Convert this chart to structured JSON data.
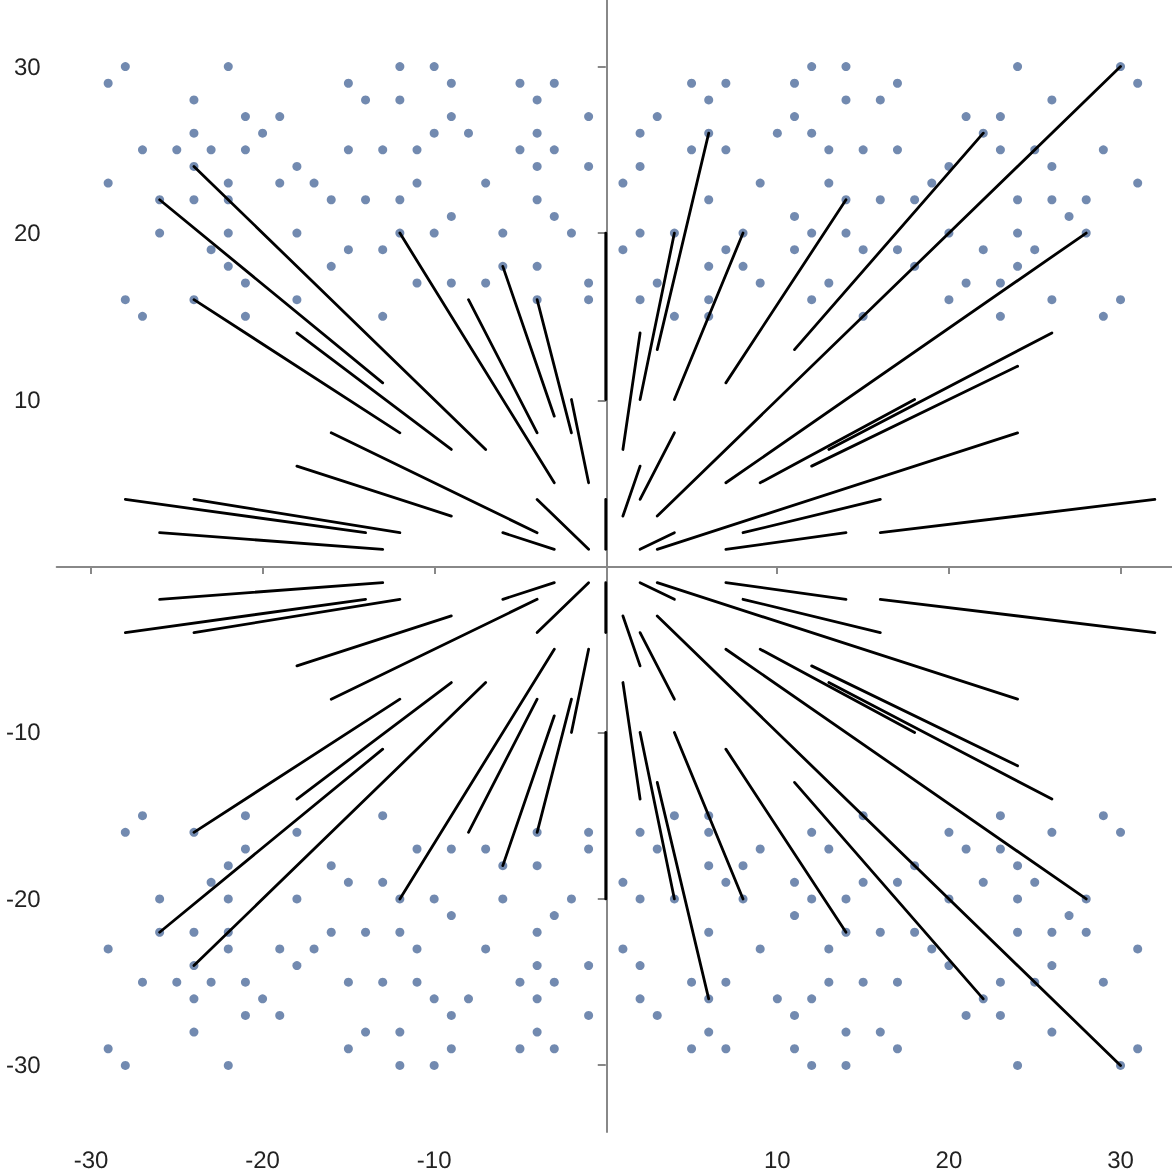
{
  "chart_data": {
    "type": "scatter",
    "xlim": [
      -32,
      33
    ],
    "ylim": [
      -34,
      34
    ],
    "xticks": [
      -30,
      -20,
      -10,
      10,
      20,
      30
    ],
    "yticks": [
      -30,
      -20,
      -10,
      10,
      20,
      30
    ],
    "marker": "circle",
    "series": [
      {
        "color": "#4f6d9c",
        "x": [
          12,
          14,
          24,
          30,
          5,
          7,
          11,
          17,
          31,
          6,
          14,
          16,
          26,
          3,
          11,
          21,
          23,
          2,
          6,
          10,
          12,
          22,
          5,
          7,
          13,
          15,
          17,
          23,
          25,
          29,
          2,
          20,
          26,
          1,
          9,
          13,
          19,
          31,
          6,
          14,
          16,
          18,
          24,
          26,
          28,
          11,
          27,
          2,
          4,
          8,
          12,
          14,
          20,
          24,
          28,
          1,
          7,
          11,
          15,
          17,
          22,
          25,
          6,
          8,
          18,
          24,
          3,
          9,
          13,
          21,
          23,
          2,
          6,
          12,
          20,
          26,
          30,
          4,
          6,
          15,
          23,
          29,
          -28,
          -22,
          -12,
          -10,
          -29,
          -15,
          -9,
          -5,
          -3,
          -24,
          -14,
          -12,
          -4,
          -21,
          -19,
          -9,
          -1,
          -24,
          -20,
          -10,
          -8,
          -4,
          -27,
          -25,
          -23,
          -21,
          -15,
          -13,
          -11,
          -5,
          -3,
          -24,
          -18,
          -4,
          -1,
          -29,
          -22,
          -19,
          -17,
          -11,
          -7,
          -26,
          -24,
          -22,
          -16,
          -14,
          -12,
          -4,
          -9,
          -3,
          -26,
          -22,
          -18,
          -12,
          -10,
          -6,
          -2,
          -23,
          -15,
          -13,
          -22,
          -16,
          -6,
          -4,
          -21,
          -11,
          -9,
          -7,
          -1,
          -28,
          -24,
          -18,
          -4,
          -1,
          -27,
          -21,
          -13,
          12,
          14,
          24,
          30,
          5,
          7,
          11,
          17,
          31,
          6,
          14,
          16,
          26,
          3,
          11,
          21,
          23,
          2,
          6,
          10,
          12,
          22,
          5,
          7,
          13,
          15,
          17,
          23,
          25,
          29,
          2,
          20,
          26,
          1,
          9,
          13,
          19,
          31,
          6,
          14,
          16,
          18,
          24,
          26,
          28,
          11,
          27,
          2,
          4,
          8,
          12,
          14,
          20,
          24,
          28,
          1,
          7,
          11,
          15,
          17,
          22,
          25,
          6,
          8,
          18,
          24,
          3,
          9,
          13,
          21,
          23,
          2,
          6,
          12,
          20,
          26,
          30,
          4,
          6,
          15,
          23,
          29,
          -28,
          -22,
          -12,
          -10,
          -29,
          -15,
          -9,
          -5,
          -3,
          -24,
          -14,
          -12,
          -4,
          -21,
          -19,
          -9,
          -1,
          -24,
          -20,
          -10,
          -8,
          -4,
          -27,
          -25,
          -23,
          -21,
          -15,
          -13,
          -11,
          -5,
          -3,
          -24,
          -18,
          -4,
          -1,
          -29,
          -22,
          -19,
          -17,
          -11,
          -7,
          -26,
          -24,
          -22,
          -16,
          -14,
          -12,
          -4,
          -9,
          -3,
          -26,
          -22,
          -18,
          -12,
          -10,
          -6,
          -2,
          -23,
          -15,
          -13,
          -22,
          -16,
          -6,
          -4,
          -21,
          -11,
          -9,
          -7,
          -1,
          -28,
          -24,
          -18,
          -4,
          -1,
          -27,
          -21,
          -13
        ],
        "values": [
          30,
          30,
          30,
          30,
          29,
          29,
          29,
          29,
          29,
          28,
          28,
          28,
          28,
          27,
          27,
          27,
          27,
          26,
          26,
          26,
          26,
          26,
          25,
          25,
          25,
          25,
          25,
          25,
          25,
          25,
          24,
          24,
          24,
          23,
          23,
          23,
          23,
          23,
          22,
          22,
          22,
          22,
          22,
          22,
          22,
          21,
          21,
          20,
          20,
          20,
          20,
          20,
          20,
          20,
          20,
          19,
          19,
          19,
          19,
          19,
          19,
          19,
          18,
          18,
          18,
          18,
          17,
          17,
          17,
          17,
          17,
          16,
          16,
          16,
          16,
          16,
          16,
          15,
          15,
          15,
          15,
          15,
          30,
          30,
          30,
          30,
          29,
          29,
          29,
          29,
          29,
          28,
          28,
          28,
          28,
          27,
          27,
          27,
          27,
          26,
          26,
          26,
          26,
          26,
          25,
          25,
          25,
          25,
          25,
          25,
          25,
          25,
          25,
          24,
          24,
          24,
          24,
          23,
          23,
          23,
          23,
          23,
          23,
          22,
          22,
          22,
          22,
          22,
          22,
          22,
          21,
          21,
          20,
          20,
          20,
          20,
          20,
          20,
          20,
          19,
          19,
          19,
          18,
          18,
          18,
          18,
          17,
          17,
          17,
          17,
          17,
          16,
          16,
          16,
          16,
          16,
          15,
          15,
          15,
          -30,
          -30,
          -30,
          -30,
          -29,
          -29,
          -29,
          -29,
          -29,
          -28,
          -28,
          -28,
          -28,
          -27,
          -27,
          -27,
          -27,
          -26,
          -26,
          -26,
          -26,
          -26,
          -25,
          -25,
          -25,
          -25,
          -25,
          -25,
          -25,
          -25,
          -24,
          -24,
          -24,
          -23,
          -23,
          -23,
          -23,
          -23,
          -22,
          -22,
          -22,
          -22,
          -22,
          -22,
          -22,
          -21,
          -21,
          -20,
          -20,
          -20,
          -20,
          -20,
          -20,
          -20,
          -20,
          -19,
          -19,
          -19,
          -19,
          -19,
          -19,
          -19,
          -18,
          -18,
          -18,
          -18,
          -17,
          -17,
          -17,
          -17,
          -17,
          -16,
          -16,
          -16,
          -16,
          -16,
          -16,
          -15,
          -15,
          -15,
          -15,
          -15,
          -30,
          -30,
          -30,
          -30,
          -29,
          -29,
          -29,
          -29,
          -29,
          -28,
          -28,
          -28,
          -28,
          -27,
          -27,
          -27,
          -27,
          -26,
          -26,
          -26,
          -26,
          -26,
          -25,
          -25,
          -25,
          -25,
          -25,
          -25,
          -25,
          -25,
          -25,
          -24,
          -24,
          -24,
          -24,
          -23,
          -23,
          -23,
          -23,
          -23,
          -23,
          -22,
          -22,
          -22,
          -22,
          -22,
          -22,
          -22,
          -21,
          -21,
          -20,
          -20,
          -20,
          -20,
          -20,
          -20,
          -20,
          -19,
          -19,
          -19,
          -18,
          -18,
          -18,
          -18,
          -17,
          -17,
          -17,
          -17,
          -17,
          -16,
          -16,
          -16,
          -16,
          -16,
          -15,
          -15,
          -15
        ]
      },
      {
        "type": "line",
        "color": "#000000",
        "marker": "none",
        "line_style": "solid",
        "x": [
          30,
          3
        ],
        "values": [
          30,
          3
        ]
      },
      {
        "type": "line",
        "color": "#000000",
        "marker": "none",
        "line_style": "solid",
        "x": [
          22,
          11
        ],
        "values": [
          26,
          13
        ]
      },
      {
        "type": "line",
        "color": "#000000",
        "marker": "none",
        "line_style": "solid",
        "x": [
          14,
          7
        ],
        "values": [
          22,
          11
        ]
      },
      {
        "type": "line",
        "color": "#000000",
        "marker": "none",
        "line_style": "solid",
        "x": [
          6,
          3
        ],
        "values": [
          26,
          13
        ]
      },
      {
        "type": "line",
        "color": "#000000",
        "marker": "none",
        "line_style": "solid",
        "x": [
          4,
          2
        ],
        "values": [
          20,
          10
        ]
      },
      {
        "type": "line",
        "color": "#000000",
        "marker": "none",
        "line_style": "solid",
        "x": [
          8,
          4
        ],
        "values": [
          20,
          10
        ]
      },
      {
        "type": "line",
        "color": "#000000",
        "marker": "none",
        "line_style": "solid",
        "x": [
          2,
          1
        ],
        "values": [
          14,
          7
        ]
      },
      {
        "type": "line",
        "color": "#000000",
        "marker": "none",
        "line_style": "solid",
        "x": [
          4,
          2
        ],
        "values": [
          8,
          4
        ]
      },
      {
        "type": "line",
        "color": "#000000",
        "marker": "none",
        "line_style": "solid",
        "x": [
          2,
          1
        ],
        "values": [
          6,
          3
        ]
      },
      {
        "type": "line",
        "color": "#000000",
        "marker": "none",
        "line_style": "solid",
        "x": [
          28,
          7
        ],
        "values": [
          20,
          5
        ]
      },
      {
        "type": "line",
        "color": "#000000",
        "marker": "none",
        "line_style": "solid",
        "x": [
          26,
          13
        ],
        "values": [
          14,
          7
        ]
      },
      {
        "type": "line",
        "color": "#000000",
        "marker": "none",
        "line_style": "solid",
        "x": [
          18,
          9
        ],
        "values": [
          10,
          5
        ]
      },
      {
        "type": "line",
        "color": "#000000",
        "marker": "none",
        "line_style": "solid",
        "x": [
          24,
          12
        ],
        "values": [
          12,
          6
        ]
      },
      {
        "type": "line",
        "color": "#000000",
        "marker": "none",
        "line_style": "solid",
        "x": [
          24,
          3
        ],
        "values": [
          8,
          1
        ]
      },
      {
        "type": "line",
        "color": "#000000",
        "marker": "none",
        "line_style": "solid",
        "x": [
          16,
          8
        ],
        "values": [
          4,
          2
        ]
      },
      {
        "type": "line",
        "color": "#000000",
        "marker": "none",
        "line_style": "solid",
        "x": [
          14,
          7
        ],
        "values": [
          2,
          1
        ]
      },
      {
        "type": "line",
        "color": "#000000",
        "marker": "none",
        "line_style": "solid",
        "x": [
          32,
          16
        ],
        "values": [
          4,
          2
        ]
      },
      {
        "type": "line",
        "color": "#000000",
        "marker": "none",
        "line_style": "solid",
        "x": [
          4,
          2
        ],
        "values": [
          2,
          1
        ]
      },
      {
        "type": "line",
        "color": "#000000",
        "marker": "none",
        "line_style": "solid",
        "x": [
          30,
          3
        ],
        "values": [
          -30,
          -3
        ]
      },
      {
        "type": "line",
        "color": "#000000",
        "marker": "none",
        "line_style": "solid",
        "x": [
          22,
          11
        ],
        "values": [
          -26,
          -13
        ]
      },
      {
        "type": "line",
        "color": "#000000",
        "marker": "none",
        "line_style": "solid",
        "x": [
          14,
          7
        ],
        "values": [
          -22,
          -11
        ]
      },
      {
        "type": "line",
        "color": "#000000",
        "marker": "none",
        "line_style": "solid",
        "x": [
          6,
          3
        ],
        "values": [
          -26,
          -13
        ]
      },
      {
        "type": "line",
        "color": "#000000",
        "marker": "none",
        "line_style": "solid",
        "x": [
          4,
          2
        ],
        "values": [
          -20,
          -10
        ]
      },
      {
        "type": "line",
        "color": "#000000",
        "marker": "none",
        "line_style": "solid",
        "x": [
          8,
          4
        ],
        "values": [
          -20,
          -10
        ]
      },
      {
        "type": "line",
        "color": "#000000",
        "marker": "none",
        "line_style": "solid",
        "x": [
          2,
          1
        ],
        "values": [
          -14,
          -7
        ]
      },
      {
        "type": "line",
        "color": "#000000",
        "marker": "none",
        "line_style": "solid",
        "x": [
          4,
          2
        ],
        "values": [
          -8,
          -4
        ]
      },
      {
        "type": "line",
        "color": "#000000",
        "marker": "none",
        "line_style": "solid",
        "x": [
          2,
          1
        ],
        "values": [
          -6,
          -3
        ]
      },
      {
        "type": "line",
        "color": "#000000",
        "marker": "none",
        "line_style": "solid",
        "x": [
          28,
          7
        ],
        "values": [
          -20,
          -5
        ]
      },
      {
        "type": "line",
        "color": "#000000",
        "marker": "none",
        "line_style": "solid",
        "x": [
          26,
          13
        ],
        "values": [
          -14,
          -7
        ]
      },
      {
        "type": "line",
        "color": "#000000",
        "marker": "none",
        "line_style": "solid",
        "x": [
          18,
          9
        ],
        "values": [
          -10,
          -5
        ]
      },
      {
        "type": "line",
        "color": "#000000",
        "marker": "none",
        "line_style": "solid",
        "x": [
          24,
          12
        ],
        "values": [
          -12,
          -6
        ]
      },
      {
        "type": "line",
        "color": "#000000",
        "marker": "none",
        "line_style": "solid",
        "x": [
          24,
          3
        ],
        "values": [
          -8,
          -1
        ]
      },
      {
        "type": "line",
        "color": "#000000",
        "marker": "none",
        "line_style": "solid",
        "x": [
          16,
          8
        ],
        "values": [
          -4,
          -2
        ]
      },
      {
        "type": "line",
        "color": "#000000",
        "marker": "none",
        "line_style": "solid",
        "x": [
          14,
          7
        ],
        "values": [
          -2,
          -1
        ]
      },
      {
        "type": "line",
        "color": "#000000",
        "marker": "none",
        "line_style": "solid",
        "x": [
          32,
          16
        ],
        "values": [
          -4,
          -2
        ]
      },
      {
        "type": "line",
        "color": "#000000",
        "marker": "none",
        "line_style": "solid",
        "x": [
          4,
          2
        ],
        "values": [
          -2,
          -1
        ]
      },
      {
        "type": "line",
        "color": "#000000",
        "marker": "none",
        "line_style": "solid",
        "x": [
          -24,
          -7
        ],
        "values": [
          24,
          7
        ]
      },
      {
        "type": "line",
        "color": "#000000",
        "marker": "none",
        "line_style": "solid",
        "x": [
          -26,
          -13
        ],
        "values": [
          22,
          11
        ]
      },
      {
        "type": "line",
        "color": "#000000",
        "marker": "none",
        "line_style": "solid",
        "x": [
          -24,
          -12
        ],
        "values": [
          16,
          8
        ]
      },
      {
        "type": "line",
        "color": "#000000",
        "marker": "none",
        "line_style": "solid",
        "x": [
          -18,
          -9
        ],
        "values": [
          14,
          7
        ]
      },
      {
        "type": "line",
        "color": "#000000",
        "marker": "none",
        "line_style": "solid",
        "x": [
          -12,
          -3
        ],
        "values": [
          20,
          5
        ]
      },
      {
        "type": "line",
        "color": "#000000",
        "marker": "none",
        "line_style": "solid",
        "x": [
          -8,
          -4
        ],
        "values": [
          16,
          8
        ]
      },
      {
        "type": "line",
        "color": "#000000",
        "marker": "none",
        "line_style": "solid",
        "x": [
          -6,
          -3
        ],
        "values": [
          18,
          9
        ]
      },
      {
        "type": "line",
        "color": "#000000",
        "marker": "none",
        "line_style": "solid",
        "x": [
          -4,
          -2
        ],
        "values": [
          16,
          8
        ]
      },
      {
        "type": "line",
        "color": "#000000",
        "marker": "none",
        "line_style": "solid",
        "x": [
          -2,
          -1
        ],
        "values": [
          10,
          5
        ]
      },
      {
        "type": "line",
        "color": "#000000",
        "marker": "none",
        "line_style": "solid",
        "x": [
          0,
          0
        ],
        "values": [
          20,
          10
        ]
      },
      {
        "type": "line",
        "color": "#000000",
        "marker": "none",
        "line_style": "solid",
        "x": [
          -16,
          -4
        ],
        "values": [
          8,
          2
        ]
      },
      {
        "type": "line",
        "color": "#000000",
        "marker": "none",
        "line_style": "solid",
        "x": [
          -18,
          -9
        ],
        "values": [
          6,
          3
        ]
      },
      {
        "type": "line",
        "color": "#000000",
        "marker": "none",
        "line_style": "solid",
        "x": [
          -4,
          -1
        ],
        "values": [
          4,
          1
        ]
      },
      {
        "type": "line",
        "color": "#000000",
        "marker": "none",
        "line_style": "solid",
        "x": [
          -6,
          -3
        ],
        "values": [
          2,
          1
        ]
      },
      {
        "type": "line",
        "color": "#000000",
        "marker": "none",
        "line_style": "solid",
        "x": [
          -28,
          -14
        ],
        "values": [
          4,
          2
        ]
      },
      {
        "type": "line",
        "color": "#000000",
        "marker": "none",
        "line_style": "solid",
        "x": [
          -24,
          -12
        ],
        "values": [
          4,
          2
        ]
      },
      {
        "type": "line",
        "color": "#000000",
        "marker": "none",
        "line_style": "solid",
        "x": [
          -26,
          -13
        ],
        "values": [
          2,
          1
        ]
      },
      {
        "type": "line",
        "color": "#000000",
        "marker": "none",
        "line_style": "solid",
        "x": [
          0,
          0
        ],
        "values": [
          4,
          1
        ]
      },
      {
        "type": "line",
        "color": "#000000",
        "marker": "none",
        "line_style": "solid",
        "x": [
          -24,
          -7
        ],
        "values": [
          -24,
          -7
        ]
      },
      {
        "type": "line",
        "color": "#000000",
        "marker": "none",
        "line_style": "solid",
        "x": [
          -26,
          -13
        ],
        "values": [
          -22,
          -11
        ]
      },
      {
        "type": "line",
        "color": "#000000",
        "marker": "none",
        "line_style": "solid",
        "x": [
          -24,
          -12
        ],
        "values": [
          -16,
          -8
        ]
      },
      {
        "type": "line",
        "color": "#000000",
        "marker": "none",
        "line_style": "solid",
        "x": [
          -18,
          -9
        ],
        "values": [
          -14,
          -7
        ]
      },
      {
        "type": "line",
        "color": "#000000",
        "marker": "none",
        "line_style": "solid",
        "x": [
          -12,
          -3
        ],
        "values": [
          -20,
          -5
        ]
      },
      {
        "type": "line",
        "color": "#000000",
        "marker": "none",
        "line_style": "solid",
        "x": [
          -8,
          -4
        ],
        "values": [
          -16,
          -8
        ]
      },
      {
        "type": "line",
        "color": "#000000",
        "marker": "none",
        "line_style": "solid",
        "x": [
          -6,
          -3
        ],
        "values": [
          -18,
          -9
        ]
      },
      {
        "type": "line",
        "color": "#000000",
        "marker": "none",
        "line_style": "solid",
        "x": [
          -4,
          -2
        ],
        "values": [
          -16,
          -8
        ]
      },
      {
        "type": "line",
        "color": "#000000",
        "marker": "none",
        "line_style": "solid",
        "x": [
          -2,
          -1
        ],
        "values": [
          -10,
          -5
        ]
      },
      {
        "type": "line",
        "color": "#000000",
        "marker": "none",
        "line_style": "solid",
        "x": [
          0,
          0
        ],
        "values": [
          -20,
          -10
        ]
      },
      {
        "type": "line",
        "color": "#000000",
        "marker": "none",
        "line_style": "solid",
        "x": [
          -16,
          -4
        ],
        "values": [
          -8,
          -2
        ]
      },
      {
        "type": "line",
        "color": "#000000",
        "marker": "none",
        "line_style": "solid",
        "x": [
          -18,
          -9
        ],
        "values": [
          -6,
          -3
        ]
      },
      {
        "type": "line",
        "color": "#000000",
        "marker": "none",
        "line_style": "solid",
        "x": [
          -4,
          -1
        ],
        "values": [
          -4,
          -1
        ]
      },
      {
        "type": "line",
        "color": "#000000",
        "marker": "none",
        "line_style": "solid",
        "x": [
          -6,
          -3
        ],
        "values": [
          -2,
          -1
        ]
      },
      {
        "type": "line",
        "color": "#000000",
        "marker": "none",
        "line_style": "solid",
        "x": [
          -28,
          -14
        ],
        "values": [
          -4,
          -2
        ]
      },
      {
        "type": "line",
        "color": "#000000",
        "marker": "none",
        "line_style": "solid",
        "x": [
          -24,
          -12
        ],
        "values": [
          -4,
          -2
        ]
      },
      {
        "type": "line",
        "color": "#000000",
        "marker": "none",
        "line_style": "solid",
        "x": [
          -26,
          -13
        ],
        "values": [
          -2,
          -1
        ]
      },
      {
        "type": "line",
        "color": "#000000",
        "marker": "none",
        "line_style": "solid",
        "x": [
          0,
          0
        ],
        "values": [
          -4,
          -1
        ]
      }
    ]
  }
}
